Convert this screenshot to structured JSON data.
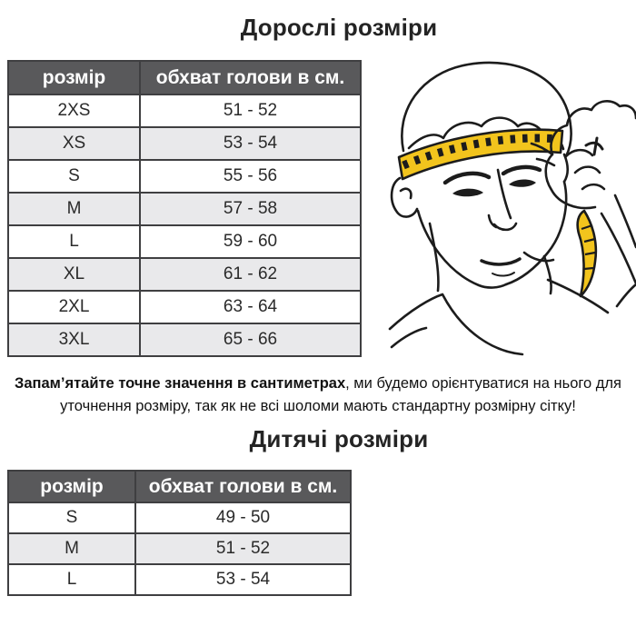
{
  "colors": {
    "header_bg": "#59595b",
    "header_text": "#ffffff",
    "row_alt": "#e9e9eb",
    "border": "#3f3f41",
    "ink": "#1c1c1c",
    "tape_yellow": "#f2c41d"
  },
  "adult": {
    "title": "Дорослі розміри",
    "table": {
      "headers": [
        "розмір",
        "обхват голови в см."
      ],
      "rows": [
        {
          "size": "2XS",
          "range": "51 - 52"
        },
        {
          "size": "XS",
          "range": "53 - 54"
        },
        {
          "size": "S",
          "range": "55 - 56"
        },
        {
          "size": "M",
          "range": "57 - 58"
        },
        {
          "size": "L",
          "range": "59 - 60"
        },
        {
          "size": "XL",
          "range": "61 - 62"
        },
        {
          "size": "2XL",
          "range": "63 - 64"
        },
        {
          "size": "3XL",
          "range": "65 - 66"
        }
      ]
    }
  },
  "note": {
    "bold": "Запам’ятайте точне значення в сантиметрах",
    "rest": ", ми будемо орієнтуватися на нього для уточнення розміру, так як не всі шоломи мають стандартну розмірну сітку!"
  },
  "kids": {
    "title": "Дитячі розміри",
    "table": {
      "headers": [
        "розмір",
        "обхват голови в см."
      ],
      "rows": [
        {
          "size": "S",
          "range": "49 - 50"
        },
        {
          "size": "M",
          "range": "51 - 52"
        },
        {
          "size": "L",
          "range": "53 - 54"
        }
      ]
    }
  },
  "illustration": {
    "label": "man-measuring-head-circumference-with-tape"
  }
}
